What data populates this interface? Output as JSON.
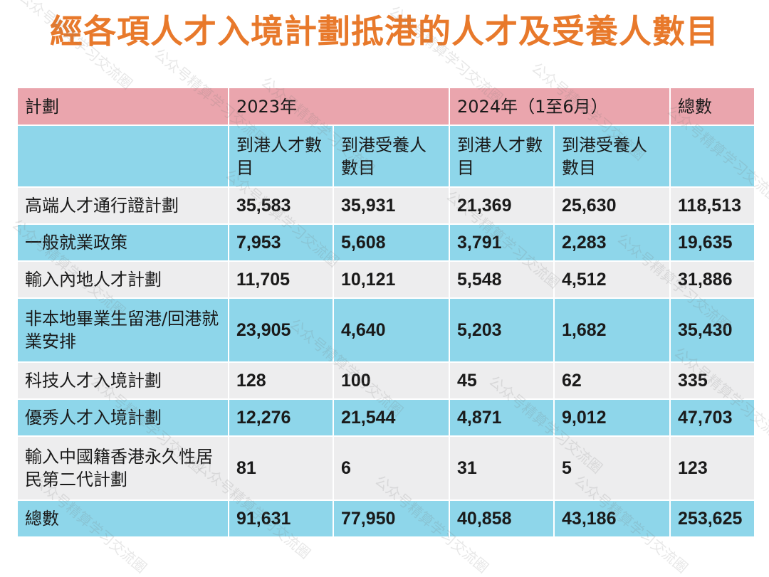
{
  "title": "經各項人才入境計劃抵港的人才及受養人數目",
  "header": {
    "plan": "計劃",
    "year2023": "2023年",
    "year2024": "2024年（1至6月）",
    "total": "總數"
  },
  "subheader": {
    "talent_2023": "到港人才數目",
    "dependant_2023": "到港受養人數目",
    "talent_2024": "到港人才數目",
    "dependant_2024": "到港受養人數目"
  },
  "rows": [
    {
      "name": "高端人才通行證計劃",
      "v": [
        "35,583",
        "35,931",
        "21,369",
        "25,630",
        "118,513"
      ]
    },
    {
      "name": "一般就業政策",
      "v": [
        "7,953",
        "5,608",
        "3,791",
        "2,283",
        "19,635"
      ]
    },
    {
      "name": "輸入內地人才計劃",
      "v": [
        "11,705",
        "10,121",
        "5,548",
        "4,512",
        "31,886"
      ]
    },
    {
      "name": "非本地畢業生留港/回港就業安排",
      "v": [
        "23,905",
        "4,640",
        "5,203",
        "1,682",
        "35,430"
      ]
    },
    {
      "name": "科技人才入境計劃",
      "v": [
        "128",
        "100",
        "45",
        "62",
        "335"
      ]
    },
    {
      "name": "優秀人才入境計劃",
      "v": [
        "12,276",
        "21,544",
        "4,871",
        "9,012",
        "47,703"
      ]
    },
    {
      "name": "輸入中國籍香港永久性居民第二代計劃",
      "v": [
        "81",
        "6",
        "31",
        "5",
        "123"
      ]
    },
    {
      "name": "總數",
      "v": [
        "91,631",
        "77,950",
        "40,858",
        "43,186",
        "253,625"
      ]
    }
  ],
  "watermark": "公众号精算学习交流圈",
  "colors": {
    "title": "#e8792b",
    "header_bg": "#eaa5ad",
    "blue_row": "#8ed6ea",
    "gray_row": "#ededee"
  }
}
